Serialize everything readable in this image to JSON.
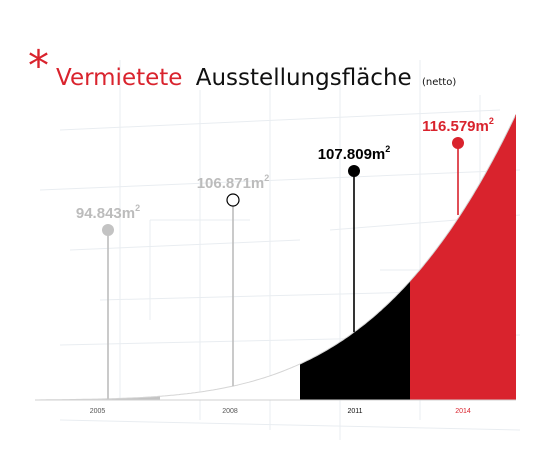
{
  "title": {
    "colored_part": "Vermietete",
    "plain_part": "Ausstellungsfläche",
    "suffix": "(netto)",
    "mark": "*",
    "accent_color": "#d9232d"
  },
  "chart_data": {
    "type": "area",
    "title": "Vermietete Ausstellungsfläche (netto)",
    "categories": [
      "2005",
      "2008",
      "2011",
      "2014"
    ],
    "values": [
      94843,
      106871,
      107809,
      116579
    ],
    "value_labels": [
      "94.843m",
      "106.871m",
      "107.809m",
      "116.579m"
    ],
    "unit_superscript": "2",
    "colors": [
      "#c3c3c3",
      "#ffffff",
      "#000000",
      "#d9232d"
    ],
    "label_colors": [
      "#bcbcbc",
      "#bcbcbc",
      "#000000",
      "#d9232d"
    ],
    "marker_style": [
      "filled",
      "hollow",
      "filled",
      "filled"
    ],
    "xlabel": "",
    "ylabel": "",
    "grid": false,
    "legend": "none"
  }
}
